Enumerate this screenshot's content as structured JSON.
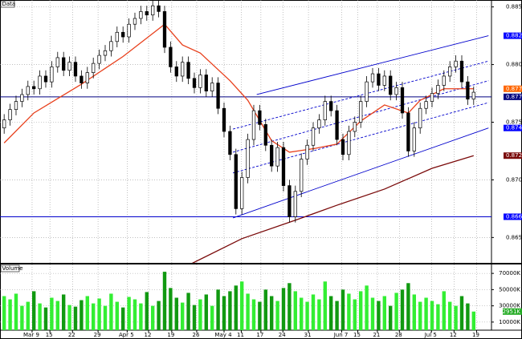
{
  "chart_data": {
    "type": "candlestick",
    "title": "Data",
    "grid": true,
    "xlim": [
      -0.7,
      82
    ],
    "xticks": [
      {
        "value": 4.7,
        "label": "Mar 9"
      },
      {
        "value": 7.7,
        "label": "15"
      },
      {
        "value": 11.5,
        "label": "22"
      },
      {
        "value": 15.8,
        "label": "29"
      },
      {
        "value": 20.7,
        "label": "Apr 5"
      },
      {
        "value": 24.3,
        "label": "12"
      },
      {
        "value": 28.2,
        "label": "19"
      },
      {
        "value": 32.4,
        "label": "26"
      },
      {
        "value": 37,
        "label": "May 4"
      },
      {
        "value": 39.9,
        "label": "11"
      },
      {
        "value": 43.2,
        "label": "17"
      },
      {
        "value": 46.9,
        "label": "24"
      },
      {
        "value": 51.2,
        "label": "31"
      },
      {
        "value": 56.8,
        "label": "Jun 7"
      },
      {
        "value": 59.5,
        "label": "15"
      },
      {
        "value": 62.8,
        "label": "21"
      },
      {
        "value": 66.5,
        "label": "28"
      },
      {
        "value": 71.9,
        "label": "Jul 5"
      },
      {
        "value": 75.7,
        "label": "12"
      },
      {
        "value": 79.5,
        "label": "19"
      }
    ],
    "ylim": [
      0.8628,
      0.8856
    ],
    "yticks": [
      {
        "value": 0.885,
        "label": "0.8850"
      },
      {
        "value": 0.88,
        "label": "0.8800"
      },
      {
        "value": 0.875,
        "label": "0.8750"
      },
      {
        "value": 0.87,
        "label": "0.8700"
      },
      {
        "value": 0.865,
        "label": "0.8650"
      }
    ],
    "candles": {
      "up_color": "#ffffff",
      "down_color": "#000000",
      "open": [
        0.8745,
        0.8752,
        0.8761,
        0.8768,
        0.8774,
        0.8781,
        0.8779,
        0.879,
        0.8785,
        0.8798,
        0.8806,
        0.8795,
        0.8802,
        0.879,
        0.8784,
        0.8793,
        0.8801,
        0.8808,
        0.8812,
        0.882,
        0.8828,
        0.8824,
        0.8835,
        0.884,
        0.8846,
        0.8843,
        0.8851,
        0.8846,
        0.8815,
        0.8798,
        0.879,
        0.8802,
        0.8788,
        0.878,
        0.8791,
        0.8777,
        0.8784,
        0.8762,
        0.8742,
        0.8722,
        0.8675,
        0.8702,
        0.8735,
        0.876,
        0.8748,
        0.873,
        0.8712,
        0.8728,
        0.8695,
        0.8668,
        0.869,
        0.8718,
        0.873,
        0.8745,
        0.8752,
        0.8768,
        0.876,
        0.8735,
        0.8722,
        0.8742,
        0.875,
        0.8768,
        0.8785,
        0.8792,
        0.8782,
        0.879,
        0.8774,
        0.878,
        0.8758,
        0.8725,
        0.8745,
        0.8762,
        0.8768,
        0.8775,
        0.8782,
        0.879,
        0.8798,
        0.8803,
        0.8785,
        0.877
      ],
      "high": [
        0.8757,
        0.8766,
        0.8773,
        0.8779,
        0.8786,
        0.8786,
        0.8795,
        0.8795,
        0.8803,
        0.8811,
        0.8811,
        0.8807,
        0.8807,
        0.8795,
        0.8798,
        0.8806,
        0.8813,
        0.8817,
        0.8825,
        0.8833,
        0.8833,
        0.884,
        0.8845,
        0.8851,
        0.8851,
        0.8856,
        0.8856,
        0.8851,
        0.882,
        0.8803,
        0.8807,
        0.8807,
        0.8793,
        0.8796,
        0.8796,
        0.8789,
        0.8789,
        0.8767,
        0.8747,
        0.8727,
        0.8707,
        0.874,
        0.8765,
        0.8765,
        0.8753,
        0.8735,
        0.8733,
        0.8733,
        0.87,
        0.8695,
        0.8723,
        0.8735,
        0.875,
        0.8757,
        0.8773,
        0.8773,
        0.8765,
        0.874,
        0.8747,
        0.8755,
        0.8773,
        0.879,
        0.8797,
        0.8797,
        0.8795,
        0.8795,
        0.8785,
        0.8785,
        0.8763,
        0.875,
        0.8767,
        0.8773,
        0.878,
        0.8787,
        0.8795,
        0.8803,
        0.8808,
        0.8808,
        0.879,
        0.8781
      ],
      "low": [
        0.874,
        0.8747,
        0.8756,
        0.8763,
        0.8769,
        0.8774,
        0.8774,
        0.878,
        0.878,
        0.8793,
        0.879,
        0.879,
        0.8785,
        0.8779,
        0.8779,
        0.8788,
        0.8796,
        0.8803,
        0.8807,
        0.8815,
        0.8819,
        0.8819,
        0.883,
        0.8835,
        0.8838,
        0.8838,
        0.8841,
        0.881,
        0.8793,
        0.8785,
        0.8785,
        0.8783,
        0.8775,
        0.8775,
        0.8772,
        0.8772,
        0.8757,
        0.8737,
        0.8717,
        0.867,
        0.867,
        0.8697,
        0.873,
        0.8743,
        0.8725,
        0.8707,
        0.8707,
        0.869,
        0.8663,
        0.8663,
        0.8685,
        0.8713,
        0.8725,
        0.874,
        0.8747,
        0.8755,
        0.873,
        0.8717,
        0.8717,
        0.8737,
        0.8745,
        0.8763,
        0.878,
        0.8777,
        0.8777,
        0.8769,
        0.8769,
        0.8753,
        0.872,
        0.872,
        0.874,
        0.8757,
        0.8763,
        0.877,
        0.8777,
        0.8785,
        0.8793,
        0.878,
        0.8765,
        0.8765
      ],
      "close": [
        0.8752,
        0.8761,
        0.8768,
        0.8774,
        0.8781,
        0.8779,
        0.879,
        0.8785,
        0.8798,
        0.8806,
        0.8795,
        0.8802,
        0.879,
        0.8784,
        0.8793,
        0.8801,
        0.8808,
        0.8812,
        0.882,
        0.8828,
        0.8824,
        0.8835,
        0.884,
        0.8846,
        0.8843,
        0.8851,
        0.8846,
        0.8815,
        0.8798,
        0.879,
        0.8802,
        0.8788,
        0.878,
        0.8791,
        0.8777,
        0.8784,
        0.8762,
        0.8742,
        0.8722,
        0.8675,
        0.8702,
        0.8735,
        0.876,
        0.8748,
        0.873,
        0.8712,
        0.8728,
        0.8695,
        0.8668,
        0.869,
        0.8718,
        0.873,
        0.8745,
        0.8752,
        0.8768,
        0.876,
        0.8735,
        0.8722,
        0.8742,
        0.875,
        0.8768,
        0.8785,
        0.8792,
        0.8782,
        0.879,
        0.8774,
        0.878,
        0.8758,
        0.8725,
        0.8745,
        0.8762,
        0.8768,
        0.8775,
        0.8782,
        0.879,
        0.8798,
        0.8803,
        0.8785,
        0.877,
        0.8776
      ]
    },
    "moving_averages": [
      {
        "color": "#e8401c",
        "x": [
          0,
          5,
          13,
          20,
          27,
          30,
          33,
          38,
          41,
          45,
          48,
          52,
          56,
          60,
          64,
          68,
          70,
          74,
          79
        ],
        "values": [
          0.8732,
          0.8758,
          0.8783,
          0.8807,
          0.8835,
          0.8817,
          0.881,
          0.8786,
          0.8769,
          0.8734,
          0.8724,
          0.8727,
          0.8731,
          0.8751,
          0.8765,
          0.8758,
          0.8769,
          0.8779,
          0.8779
        ]
      },
      {
        "color": "#7a0a0a",
        "x": [
          31,
          40,
          49,
          56,
          64,
          72,
          79
        ],
        "values": [
          0.8626,
          0.8649,
          0.8665,
          0.8678,
          0.8692,
          0.871,
          0.8721
        ]
      }
    ],
    "trend_lines": [
      {
        "color": "#0000cc",
        "dash": false,
        "x": [
          38.5,
          81.5
        ],
        "values": [
          0.8667,
          0.8745
        ]
      },
      {
        "color": "#0000cc",
        "dash": false,
        "x": [
          42.5,
          81.5
        ],
        "values": [
          0.8774,
          0.8825
        ]
      },
      {
        "color": "#0000cc",
        "dash": true,
        "x": [
          38.5,
          81.5
        ],
        "values": [
          0.8706,
          0.8767
        ]
      },
      {
        "color": "#0000cc",
        "dash": true,
        "x": [
          38.5,
          81.5
        ],
        "values": [
          0.8724,
          0.8786
        ]
      },
      {
        "color": "#0000cc",
        "dash": true,
        "x": [
          38.5,
          81.5
        ],
        "values": [
          0.8744,
          0.8803
        ]
      }
    ],
    "horizontal_lines": [
      {
        "value": 0.8772,
        "color": "#000080"
      },
      {
        "value": 0.8668,
        "color": "#0000cc"
      }
    ],
    "price_markers": [
      {
        "value": 0.8825,
        "color": "#0000ff"
      },
      {
        "value": 0.8779,
        "color": "#ff6600"
      },
      {
        "value": 0.8772,
        "color": "#000080"
      },
      {
        "value": 0.8745,
        "color": "#0000ff"
      },
      {
        "value": 0.8721,
        "color": "#7a0a0a"
      },
      {
        "value": 0.8668,
        "color": "#0000ff"
      }
    ],
    "volume": {
      "title": "Volume",
      "up_color": "#33ee33",
      "down_color": "#119911",
      "ylim": [
        0,
        80000
      ],
      "yticks": [
        {
          "value": 70000,
          "label": "70000K"
        },
        {
          "value": 50000,
          "label": "50000K"
        },
        {
          "value": 30000,
          "label": "30000K"
        },
        {
          "value": 10000,
          "label": "10000K"
        }
      ],
      "marker": {
        "value": 22951,
        "label": "22951K",
        "color": "#22aa22"
      },
      "values": [
        42000,
        38000,
        45000,
        30000,
        35000,
        48000,
        33000,
        28000,
        40000,
        36000,
        44000,
        31000,
        29000,
        37000,
        42000,
        33000,
        39000,
        30000,
        45000,
        35000,
        28000,
        41000,
        38000,
        33000,
        47000,
        30000,
        36000,
        72000,
        52000,
        40000,
        34000,
        46000,
        31000,
        38000,
        44000,
        30000,
        50000,
        42000,
        48000,
        55000,
        60000,
        45000,
        38000,
        35000,
        50000,
        42000,
        36000,
        52000,
        58000,
        48000,
        40000,
        35000,
        44000,
        38000,
        60000,
        42000,
        36000,
        50000,
        45000,
        38000,
        48000,
        55000,
        40000,
        36000,
        42000,
        30000,
        46000,
        50000,
        58000,
        44000,
        35000,
        40000,
        36000,
        32000,
        48000,
        35000,
        30000,
        42000,
        33000,
        22951
      ]
    }
  }
}
